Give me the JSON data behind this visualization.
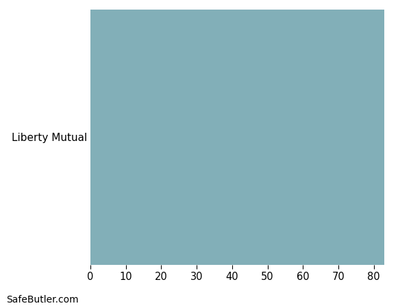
{
  "categories": [
    "Liberty Mutual"
  ],
  "values": [
    83
  ],
  "bar_color": "#82afb8",
  "xlim": [
    0,
    87
  ],
  "xticks": [
    0,
    10,
    20,
    30,
    40,
    50,
    60,
    70,
    80
  ],
  "background_color": "#ffffff",
  "grid_color": "#d0d8da",
  "bar_edge_color": "none",
  "watermark": "SafeButler.com",
  "watermark_fontsize": 10,
  "tick_fontsize": 10.5,
  "label_fontsize": 11,
  "figsize": [
    6.0,
    4.5
  ],
  "dpi": 100
}
